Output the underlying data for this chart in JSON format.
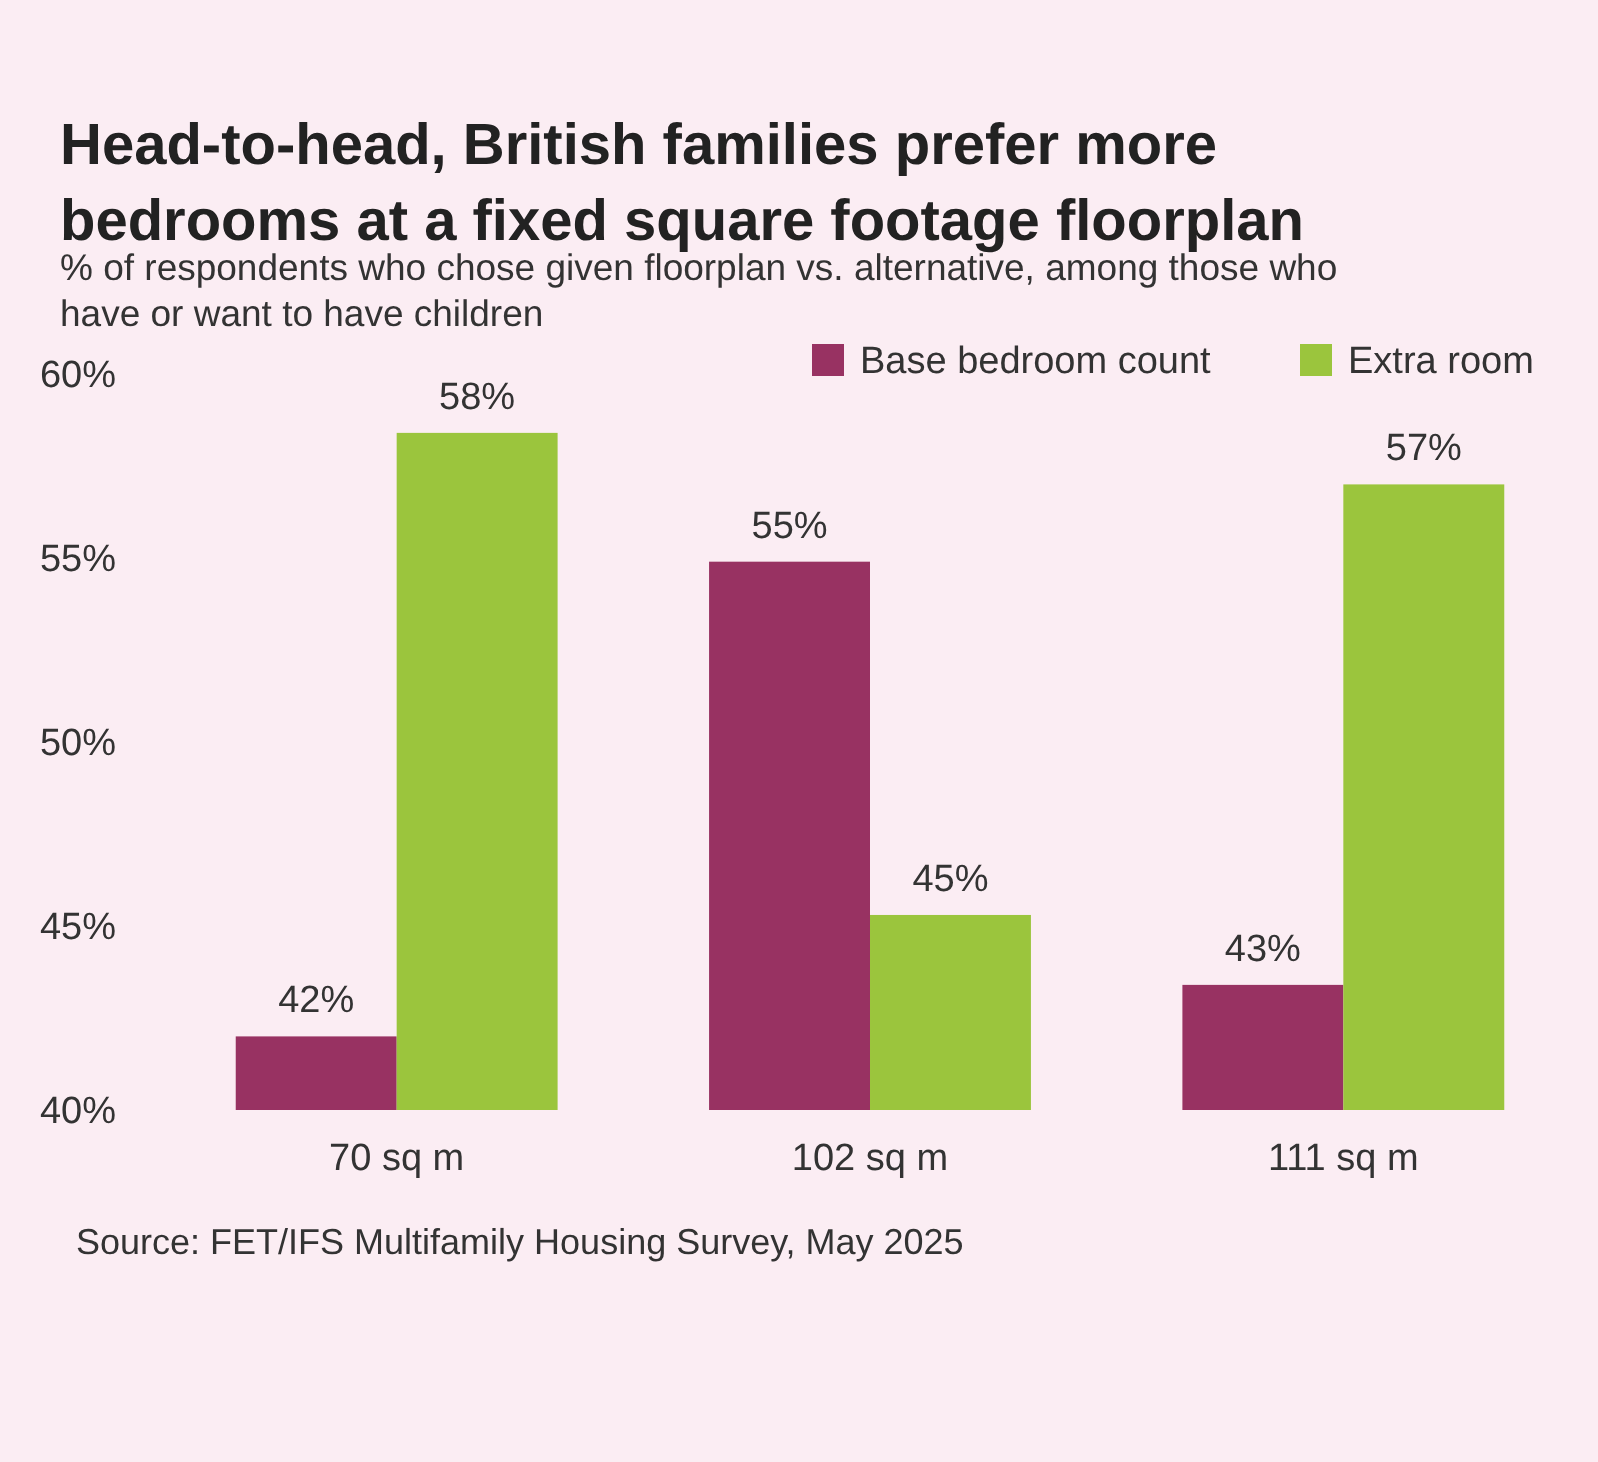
{
  "chart_data": {
    "type": "bar",
    "title": "Head-to-head, British families prefer more bedrooms at a fixed square footage floorplan",
    "subtitle": "% of respondents who chose given floorplan vs. alternative, among those who have or want to have children",
    "categories": [
      "70 sq m",
      "102 sq m",
      "111 sq m"
    ],
    "series": [
      {
        "name": "Base bedroom count",
        "color": "#983262",
        "values": [
          42,
          54.9,
          43.4
        ],
        "value_labels": [
          "42%",
          "55%",
          "43%"
        ]
      },
      {
        "name": "Extra room",
        "color": "#9bc53d",
        "values": [
          58.4,
          45.3,
          57
        ],
        "value_labels": [
          "58%",
          "45%",
          "57%"
        ]
      }
    ],
    "ylim": [
      40,
      60
    ],
    "yticks": [
      {
        "value": 40,
        "label": "40%"
      },
      {
        "value": 45,
        "label": "45%"
      },
      {
        "value": 50,
        "label": "50%"
      },
      {
        "value": 55,
        "label": "55%"
      },
      {
        "value": 60,
        "label": "60%"
      }
    ],
    "legend": "top right",
    "grid": false,
    "annotations": [
      "Source: FET/IFS Multifamily Housing Survey, May 2025"
    ]
  }
}
